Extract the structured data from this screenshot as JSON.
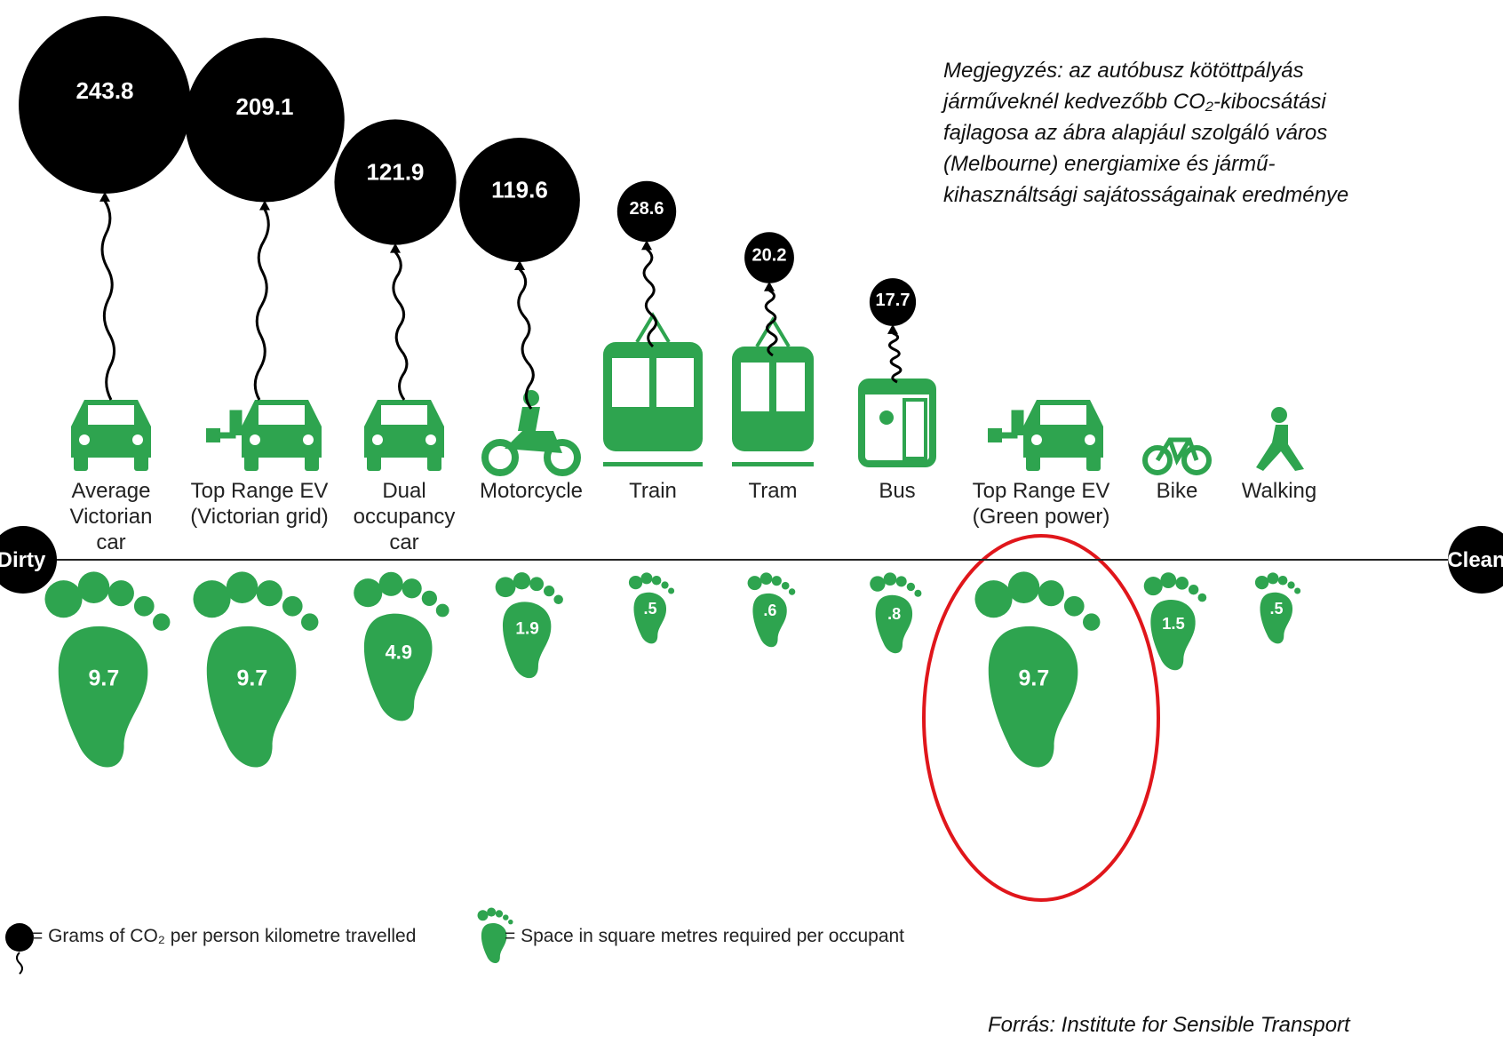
{
  "chart_data": {
    "type": "pictogram",
    "categories": [
      "Average Victorian car",
      "Top Range EV (Victorian grid)",
      "Dual occupancy car",
      "Motorcycle",
      "Train",
      "Tram",
      "Bus",
      "Top Range EV (Green power)",
      "Bike",
      "Walking"
    ],
    "series": [
      {
        "name": "= Grams of CO₂ per person kilometre travelled",
        "color": "#000000",
        "values": [
          243.8,
          209.1,
          121.9,
          119.6,
          28.6,
          20.2,
          17.7,
          null,
          null,
          null
        ],
        "value_labels": [
          "243.8",
          "209.1",
          "121.9",
          "119.6",
          "28.6",
          "20.2",
          "17.7",
          null,
          null,
          null
        ]
      },
      {
        "name": "= Space in square metres required per occupant",
        "color": "#2ea44f",
        "values": [
          9.7,
          9.7,
          4.9,
          1.9,
          0.5,
          0.6,
          0.8,
          9.7,
          1.5,
          0.5
        ],
        "value_labels": [
          "9.7",
          "9.7",
          "4.9",
          "1.9",
          ".5",
          ".6",
          ".8",
          "9.7",
          "1.5",
          ".5"
        ]
      }
    ],
    "axis_labels": [
      "Dirty",
      "Clean"
    ],
    "note": [
      "Megjegyzés: az autóbusz kötöttpályás",
      "járműveknél kedvezőbb CO₂-kibocsátási",
      "fajlagosa az ábra alapjául szolgáló város",
      "(Melbourne) energiamixe és jármű-",
      "kihasználtsági sajátosságainak eredménye"
    ],
    "source": "Forrás: Institute for Sensible Transport"
  }
}
